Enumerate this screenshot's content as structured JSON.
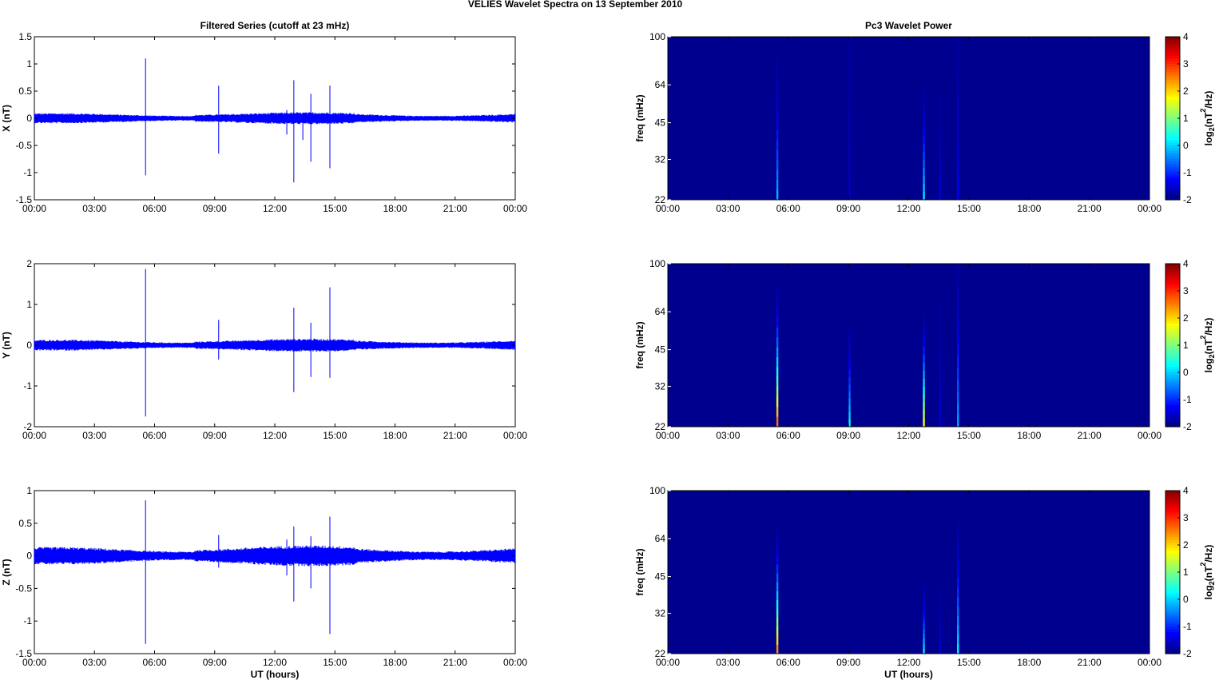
{
  "figure": {
    "title": "VELIES Wavelet Spectra on 13 September 2010"
  },
  "colors": {
    "series": "#0000ff",
    "axes": "#000000",
    "spectrum_background": "#00008f"
  },
  "chart_data": [
    {
      "type": "line",
      "title": "Filtered Series (cutoff at 23 mHz)",
      "xlabel": "",
      "ylabel": "X (nT)",
      "xlim": [
        0,
        24
      ],
      "ylim": [
        -1.5,
        1.5
      ],
      "xticks": [
        "00:00",
        "03:00",
        "06:00",
        "09:00",
        "12:00",
        "15:00",
        "18:00",
        "21:00",
        "00:00"
      ],
      "yticks": [
        "1.5",
        "1",
        "0.5",
        "0",
        "-0.5",
        "-1",
        "-1.5"
      ],
      "noise_amplitude": 0.07,
      "spikes": [
        {
          "t": 5.55,
          "max": 1.1,
          "min": -1.05
        },
        {
          "t": 9.2,
          "max": 0.6,
          "min": -0.65
        },
        {
          "t": 12.6,
          "max": 0.15,
          "min": -0.3
        },
        {
          "t": 12.95,
          "max": 0.7,
          "min": -1.18
        },
        {
          "t": 13.4,
          "max": 0.1,
          "min": -0.4
        },
        {
          "t": 13.8,
          "max": 0.45,
          "min": -0.8
        },
        {
          "t": 14.75,
          "max": 0.6,
          "min": -0.92
        }
      ]
    },
    {
      "type": "line",
      "title": "",
      "xlabel": "",
      "ylabel": "Y (nT)",
      "xlim": [
        0,
        24
      ],
      "ylim": [
        -2,
        2
      ],
      "xticks": [
        "00:00",
        "03:00",
        "06:00",
        "09:00",
        "12:00",
        "15:00",
        "18:00",
        "21:00",
        "00:00"
      ],
      "yticks": [
        "2",
        "1",
        "0",
        "-1",
        "-2"
      ],
      "noise_amplitude": 0.1,
      "spikes": [
        {
          "t": 5.55,
          "max": 1.87,
          "min": -1.75
        },
        {
          "t": 9.2,
          "max": 0.62,
          "min": -0.35
        },
        {
          "t": 12.95,
          "max": 0.92,
          "min": -1.15
        },
        {
          "t": 13.8,
          "max": 0.55,
          "min": -0.78
        },
        {
          "t": 14.75,
          "max": 1.42,
          "min": -0.8
        }
      ]
    },
    {
      "type": "line",
      "title": "",
      "xlabel": "UT (hours)",
      "ylabel": "Z (nT)",
      "xlim": [
        0,
        24
      ],
      "ylim": [
        -1.5,
        1
      ],
      "xticks": [
        "00:00",
        "03:00",
        "06:00",
        "09:00",
        "12:00",
        "15:00",
        "18:00",
        "21:00",
        "00:00"
      ],
      "yticks": [
        "1",
        "0.5",
        "0",
        "-0.5",
        "-1",
        "-1.5"
      ],
      "noise_amplitude": 0.1,
      "spikes": [
        {
          "t": 5.55,
          "max": 0.85,
          "min": -1.35
        },
        {
          "t": 9.2,
          "max": 0.32,
          "min": -0.18
        },
        {
          "t": 12.6,
          "max": 0.25,
          "min": -0.3
        },
        {
          "t": 12.95,
          "max": 0.45,
          "min": -0.7
        },
        {
          "t": 13.8,
          "max": 0.3,
          "min": -0.5
        },
        {
          "t": 14.75,
          "max": 0.6,
          "min": -1.2
        }
      ]
    },
    {
      "type": "heatmap",
      "title": "Pc3 Wavelet Power",
      "xlabel": "",
      "ylabel": "freq (mHz)",
      "xlim": [
        0,
        24
      ],
      "ylim": [
        22,
        100
      ],
      "yscale": "log",
      "xticks": [
        "00:00",
        "03:00",
        "06:00",
        "09:00",
        "12:00",
        "15:00",
        "18:00",
        "21:00",
        "00:00"
      ],
      "yticks": [
        "100",
        "64",
        "45",
        "32",
        "22"
      ],
      "colorbar": {
        "label": "log2(nT2/Hz)",
        "range": [
          -2,
          4
        ],
        "ticks": [
          "4",
          "3",
          "2",
          "1",
          "0",
          "-1",
          "-2"
        ],
        "colormap": "jet"
      },
      "streaks": [
        {
          "t": 5.45,
          "fmax": 80,
          "peak": -0.2
        },
        {
          "t": 9.05,
          "fmax": 100,
          "peak": -1.6
        },
        {
          "t": 12.75,
          "fmax": 62,
          "peak": 0.1
        },
        {
          "t": 13.55,
          "fmax": 58,
          "peak": -1.5
        },
        {
          "t": 14.45,
          "fmax": 100,
          "peak": -1.3
        }
      ]
    },
    {
      "type": "heatmap",
      "title": "",
      "xlabel": "",
      "ylabel": "freq (mHz)",
      "xlim": [
        0,
        24
      ],
      "ylim": [
        22,
        100
      ],
      "yscale": "log",
      "xticks": [
        "00:00",
        "03:00",
        "06:00",
        "09:00",
        "12:00",
        "15:00",
        "18:00",
        "21:00",
        "00:00"
      ],
      "yticks": [
        "100",
        "64",
        "45",
        "32",
        "22"
      ],
      "colorbar": {
        "label": "log2(nT2/Hz)",
        "range": [
          -2,
          4
        ],
        "ticks": [
          "4",
          "3",
          "2",
          "1",
          "0",
          "-1",
          "-2"
        ],
        "colormap": "jet"
      },
      "streaks": [
        {
          "t": 5.45,
          "fmax": 80,
          "peak": 2.6
        },
        {
          "t": 9.05,
          "fmax": 55,
          "peak": 0.2
        },
        {
          "t": 12.75,
          "fmax": 62,
          "peak": 1.8
        },
        {
          "t": 13.55,
          "fmax": 68,
          "peak": -1.5
        },
        {
          "t": 14.45,
          "fmax": 100,
          "peak": -0.3
        }
      ]
    },
    {
      "type": "heatmap",
      "title": "",
      "xlabel": "UT (hours)",
      "ylabel": "freq (mHz)",
      "xlim": [
        0,
        24
      ],
      "ylim": [
        22,
        100
      ],
      "yscale": "log",
      "xticks": [
        "00:00",
        "03:00",
        "06:00",
        "09:00",
        "12:00",
        "15:00",
        "18:00",
        "21:00",
        "00:00"
      ],
      "yticks": [
        "100",
        "64",
        "45",
        "32",
        "22"
      ],
      "colorbar": {
        "label": "log2(nT2/Hz)",
        "range": [
          -2,
          4
        ],
        "ticks": [
          "4",
          "3",
          "2",
          "1",
          "0",
          "-1",
          "-2"
        ],
        "colormap": "jet"
      },
      "streaks": [
        {
          "t": 5.45,
          "fmax": 70,
          "peak": 2.4
        },
        {
          "t": 12.75,
          "fmax": 42,
          "peak": 0.1
        },
        {
          "t": 13.55,
          "fmax": 40,
          "peak": -1.5
        },
        {
          "t": 14.45,
          "fmax": 75,
          "peak": 0.2
        }
      ]
    }
  ]
}
